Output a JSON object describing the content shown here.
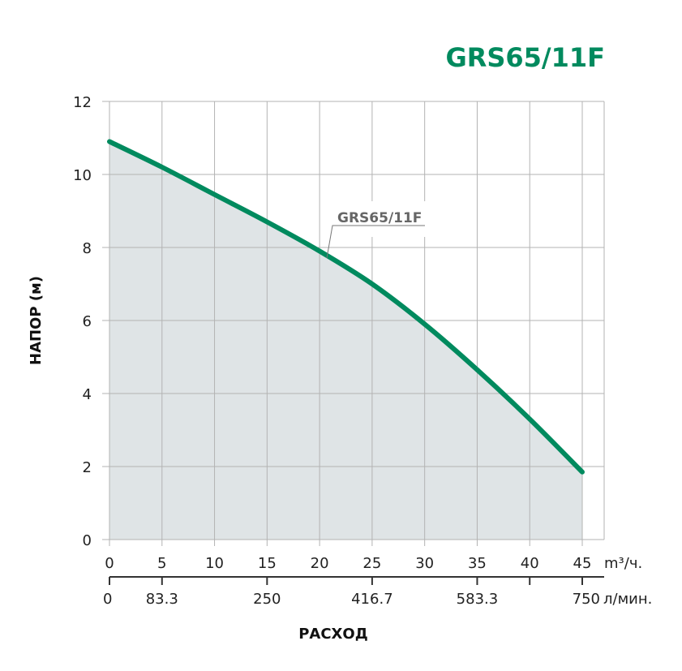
{
  "chart_data": {
    "type": "area",
    "title": "GRS65/11F",
    "ylabel": "НАПОР (м)",
    "xlabel": "РАСХОД",
    "x_unit": "m³/ч.",
    "x2_unit": "л/мин.",
    "xlim": [
      0,
      45
    ],
    "ylim": [
      0,
      12
    ],
    "grid": true,
    "x_ticks": [
      0,
      5,
      10,
      15,
      20,
      25,
      30,
      35,
      40,
      45
    ],
    "y_ticks": [
      0,
      2,
      4,
      6,
      8,
      10,
      12
    ],
    "x2_ticks": [
      {
        "at": 0,
        "label": "0"
      },
      {
        "at": 5,
        "label": "83.3"
      },
      {
        "at": 15,
        "label": "250"
      },
      {
        "at": 25,
        "label": "416.7"
      },
      {
        "at": 35,
        "label": "583.3"
      },
      {
        "at": 40,
        "label": ""
      },
      {
        "at": 45,
        "label": "750"
      }
    ],
    "series": [
      {
        "name": "GRS65/11F",
        "x": [
          0,
          5,
          10,
          15,
          20,
          25,
          30,
          35,
          40,
          45
        ],
        "y": [
          10.9,
          10.2,
          9.45,
          8.7,
          7.9,
          7.0,
          5.9,
          4.65,
          3.3,
          1.85
        ]
      }
    ],
    "colors": {
      "line": "#008a5e",
      "fill": "#dfe4e6",
      "title": "#008a5e",
      "grid": "#b3b3b3"
    }
  }
}
